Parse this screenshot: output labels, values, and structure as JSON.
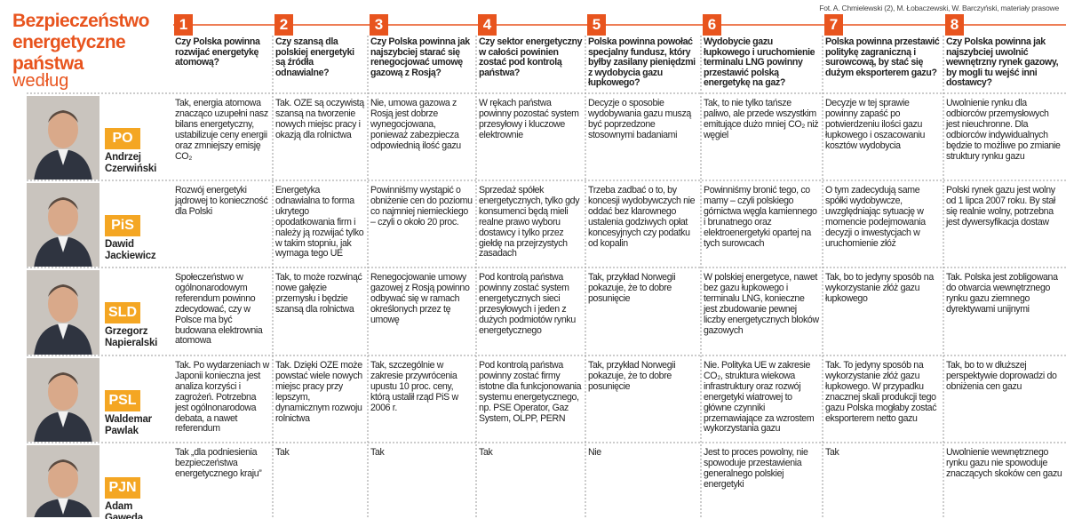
{
  "title": {
    "lines": [
      "Bezpieczeństwo",
      "energetyczne",
      "państwa"
    ],
    "subtitle": "według"
  },
  "credit": "Fot. A. Chmielewski (2), M. Łobaczewski, W. Barczyński, materiały prasowe",
  "questions": [
    {
      "number": 1,
      "text": "Czy Polska powinna rozwijać energetykę atomową?"
    },
    {
      "number": 2,
      "text": "Czy szansą dla polskiej energetyki są źródła odnawialne?"
    },
    {
      "number": 3,
      "text": "Czy Polska powinna jak najszybciej starać się renegocjować umowę gazową z Rosją?"
    },
    {
      "number": 4,
      "text": "Czy sektor energetyczny w całości powinien zostać pod kontrolą państwa?"
    },
    {
      "number": 5,
      "text": "Polska powinna powołać specjalny fundusz, który byłby zasilany pieniędzmi z wydobycia gazu łupkowego?"
    },
    {
      "number": 6,
      "text": "Wydobycie gazu łupkowego i uruchomienie terminalu LNG powinny przestawić polską energetykę na gaz?"
    },
    {
      "number": 7,
      "text": "Polska powinna przestawić politykę zagraniczną i surowcową, by stać się dużym eksporterem gazu?"
    },
    {
      "number": 8,
      "text": "Czy Polska powinna jak najszybciej uwolnić wewnętrzny rynek gazowy, by mogli tu wejść inni dostawcy?"
    }
  ],
  "rows": [
    {
      "party": "PO",
      "name": [
        "Andrzej",
        "Czerwiński"
      ],
      "answers": [
        "Tak, energia atomowa znacząco uzupełni nasz bilans energetyczny, ustabilizuje ceny energii oraz zmniejszy emisję CO₂",
        "Tak. OZE są oczywistą szansą na tworzenie nowych miejsc pracy i okazją dla rolnictwa",
        "Nie, umowa gazowa z Rosją jest dobrze wynegocjowana, ponieważ zabezpiecza odpowiednią ilość gazu",
        "W rękach państwa powinny pozostać system przesyłowy i kluczowe elektrownie",
        "Decyzje o sposobie wydobywania gazu muszą być poprzedzone stosownymi badaniami",
        "Tak, to nie tylko tańsze paliwo, ale przede wszystkim emitujące dużo mniej CO₂ niż węgiel",
        "Decyzje w tej sprawie powinny zapaść po potwierdzeniu ilości gazu łupkowego i oszacowaniu kosztów wydobycia",
        "Uwolnienie rynku dla odbiorców przemysłowych jest nieuchronne. Dla odbiorców indywidualnych będzie to możliwe po zmianie struktury rynku gazu"
      ]
    },
    {
      "party": "PiS",
      "name": [
        "Dawid",
        "Jackiewicz"
      ],
      "answers": [
        "Rozwój energetyki jądrowej to konieczność dla Polski",
        "Energetyka odnawialna to forma ukrytego opodatkowania firm i należy ją rozwijać tylko w takim stopniu, jak wymaga tego UE",
        "Powinniśmy wystąpić o obniżenie cen do poziomu co najmniej niemieckiego – czyli o około 20 proc.",
        "Sprzedaż spółek energetycznych, tylko gdy konsumenci będą mieli realne prawo wyboru dostawcy i tylko przez giełdę na przejrzystych zasadach",
        "Trzeba zadbać o to, by koncesji wydobywczych nie oddać bez klarownego ustalenia godziwych opłat koncesyjnych czy podatku od kopalin",
        "Powinniśmy bronić tego, co mamy – czyli polskiego górnictwa węgla kamiennego i brunatnego oraz elektroenergetyki opartej na tych surowcach",
        "O tym zadecydują same spółki wydobywcze, uwzględniając sytuację w momencie podejmowania decyzji o inwestycjach w uruchomienie złóż",
        "Polski rynek gazu jest wolny od 1 lipca 2007 roku. By stał się realnie wolny, potrzebna jest dywersyfikacja dostaw"
      ]
    },
    {
      "party": "SLD",
      "name": [
        "Grzegorz",
        "Napieralski"
      ],
      "answers": [
        "Społeczeństwo w ogólnonarodowym referendum powinno zdecydować, czy w Polsce ma być budowana elektrownia atomowa",
        "Tak, to może rozwinąć nowe gałęzie przemysłu i będzie szansą dla rolnictwa",
        "Renegocjowanie umowy gazowej z Rosją powinno odbywać się w ramach określonych przez tę umowę",
        "Pod kontrolą państwa powinny zostać system energetycznych sieci przesyłowych i jeden z dużych podmiotów rynku energetycznego",
        "Tak, przykład Norwegii pokazuje, że to dobre posunięcie",
        "W polskiej energetyce, nawet bez gazu łupkowego i terminalu LNG, konieczne jest zbudowanie pewnej liczby energetycznych bloków gazowych",
        "Tak, bo to jedyny sposób na wykorzystanie złóż gazu łupkowego",
        "Tak. Polska jest zobligowana do otwarcia wewnętrznego rynku gazu ziemnego dyrektywami unijnymi"
      ]
    },
    {
      "party": "PSL",
      "name": [
        "Waldemar",
        "Pawlak"
      ],
      "answers": [
        "Tak. Po wydarzeniach w Japonii konieczna jest analiza korzyści i zagrożeń. Potrzebna jest ogólnonarodowa debata, a nawet referendum",
        "Tak. Dzięki OZE może powstać wiele nowych miejsc pracy przy lepszym, dynamicznym rozwoju rolnictwa",
        "Tak, szczególnie w zakresie przywrócenia upustu 10 proc. ceny, którą ustalił rząd PiS w 2006 r.",
        "Pod kontrolą państwa powinny zostać firmy istotne dla funkcjonowania systemu energetycznego, np. PSE Operator, Gaz System, OLPP, PERN",
        "Tak, przykład Norwegii pokazuje, że to dobre posunięcie",
        "Nie. Polityka UE w zakresie CO₂, struktura wiekowa infrastruktury oraz rozwój energetyki wiatrowej to główne czynniki przemawiające za wzrostem wykorzystania gazu",
        "Tak. To jedyny sposób na wykorzystanie złóż gazu łupkowego. W przypadku znacznej skali produkcji tego gazu Polska mogłaby zostać eksporterem netto gazu",
        "Tak, bo to w dłuższej perspektywie doprowadzi do obniżenia cen gazu"
      ]
    },
    {
      "party": "PJN",
      "name": [
        "Adam",
        "Gawęda"
      ],
      "answers": [
        "Tak „dla podniesienia bezpieczeństwa energetycznego kraju”",
        "Tak",
        "Tak",
        "Tak",
        "Nie",
        "Jest to proces powolny, nie spowoduje przestawienia generalnego polskiej energetyki",
        "Tak",
        "Uwolnienie wewnętrznego rynku gazu nie spowoduje znaczących skoków cen gazu"
      ]
    }
  ]
}
